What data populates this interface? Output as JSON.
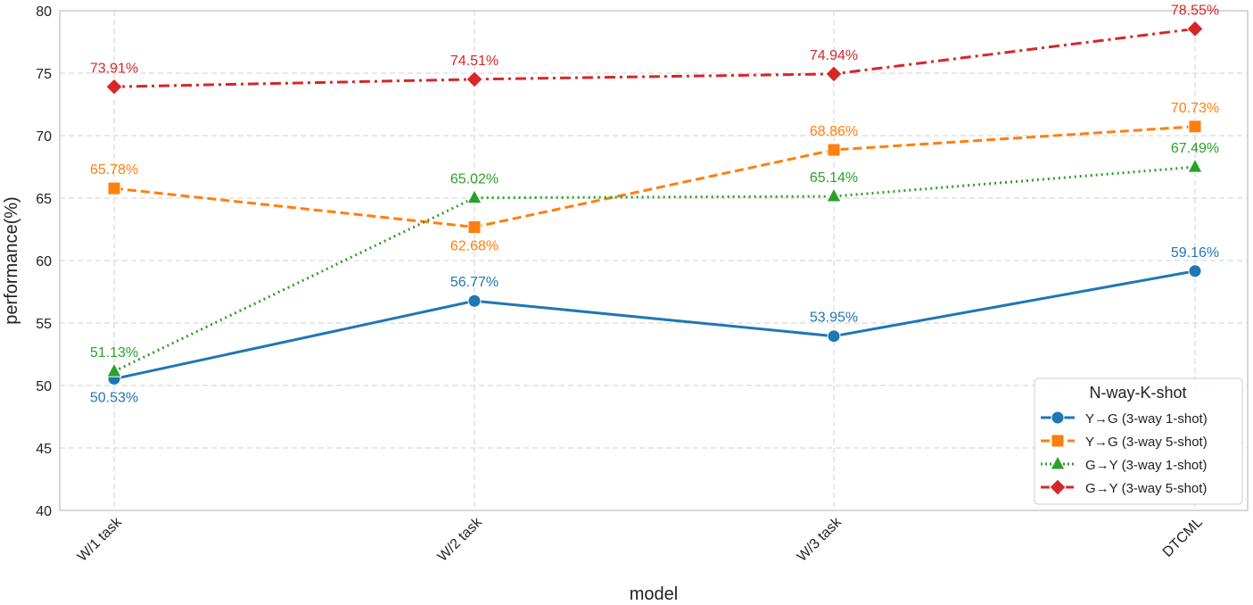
{
  "chart_data": {
    "type": "line",
    "title": "",
    "xlabel": "model",
    "ylabel": "performance(%)",
    "categories": [
      "W/1 task",
      "W/2 task",
      "W/3 task",
      "DTCML"
    ],
    "ylim": [
      40,
      80
    ],
    "yticks": [
      40,
      45,
      50,
      55,
      60,
      65,
      70,
      75,
      80
    ],
    "ytick_labels": [
      "40",
      "45",
      "50",
      "55",
      "60",
      "65",
      "70",
      "75",
      "80"
    ],
    "grid": true,
    "legend": {
      "title": "N-way-K-shot",
      "placement": "bottom-right"
    },
    "series": [
      {
        "name": "Y→G (3-way 1-shot)",
        "values": [
          50.53,
          56.77,
          53.95,
          59.16
        ],
        "labels": [
          "50.53%",
          "56.77%",
          "53.95%",
          "59.16%"
        ],
        "color": "#1f77b4",
        "linestyle": "solid",
        "marker": "circle"
      },
      {
        "name": "Y→G (3-way 5-shot)",
        "values": [
          65.78,
          62.68,
          68.86,
          70.73
        ],
        "labels": [
          "65.78%",
          "62.68%",
          "68.86%",
          "70.73%"
        ],
        "color": "#ff7f0e",
        "linestyle": "dashed",
        "marker": "square"
      },
      {
        "name": "G→Y (3-way 1-shot)",
        "values": [
          51.13,
          65.02,
          65.14,
          67.49
        ],
        "labels": [
          "51.13%",
          "65.02%",
          "65.14%",
          "67.49%"
        ],
        "color": "#2ca02c",
        "linestyle": "dotted",
        "marker": "triangle"
      },
      {
        "name": "G→Y (3-way 5-shot)",
        "values": [
          73.91,
          74.51,
          74.94,
          78.55
        ],
        "labels": [
          "73.91%",
          "74.51%",
          "74.94%",
          "78.55%"
        ],
        "color": "#d62728",
        "linestyle": "dashdot",
        "marker": "diamond"
      }
    ]
  }
}
